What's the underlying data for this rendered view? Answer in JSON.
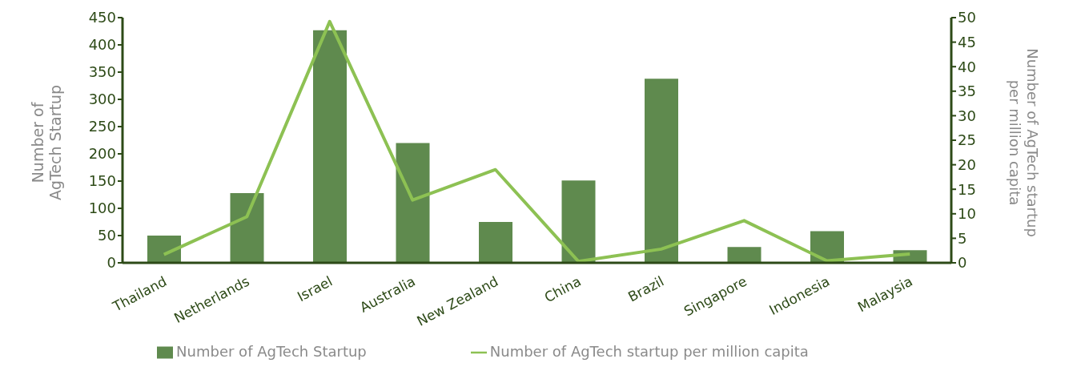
{
  "chart_data": {
    "type": "bar",
    "categories": [
      "Thailand",
      "Netherlands",
      "Israel",
      "Australia",
      "New Zealand",
      "China",
      "Brazil",
      "Singapore",
      "Indonesia",
      "Malaysia"
    ],
    "series": [
      {
        "name": "Number of AgTech Startup",
        "color": "#5f8a4e",
        "values": [
          50,
          128,
          427,
          220,
          75,
          151,
          338,
          29,
          58,
          23
        ]
      },
      {
        "name": "Number of AgTech startup per million capita",
        "type": "line",
        "axis": "y2",
        "color": "#8dc153",
        "values": [
          1.7,
          9.4,
          49.2,
          12.8,
          19,
          0.3,
          2.8,
          8.6,
          0.4,
          1.8
        ]
      }
    ],
    "ylabel": "Number of AgTech Startup",
    "y2label": "Number of AgTech startup per million capita",
    "ylim": [
      0,
      450
    ],
    "yticks": [
      0,
      50,
      100,
      150,
      200,
      250,
      300,
      350,
      400,
      450
    ],
    "y2lim": [
      0,
      50
    ],
    "y2ticks": [
      0,
      5,
      10,
      15,
      20,
      25,
      30,
      35,
      40,
      45,
      50
    ],
    "grid": false,
    "legend": "bottom",
    "marker": "none"
  }
}
